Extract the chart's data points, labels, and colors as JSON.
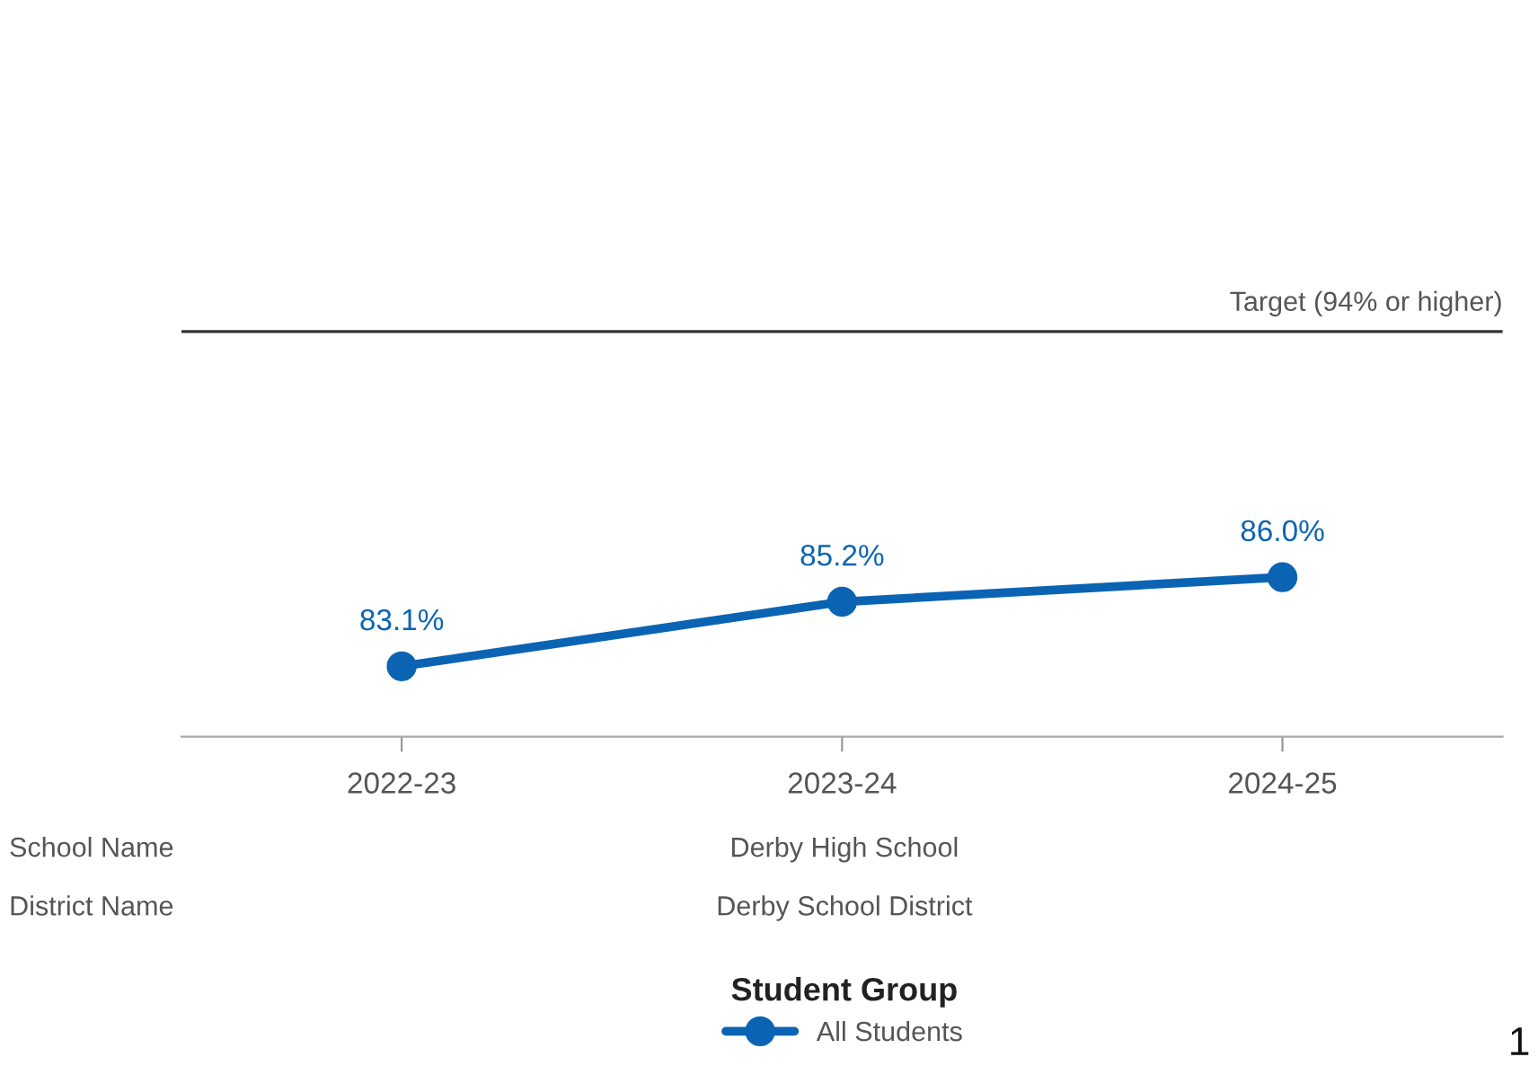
{
  "chart_data": {
    "type": "line",
    "categories": [
      "2022-23",
      "2023-24",
      "2024-25"
    ],
    "series": [
      {
        "name": "All Students",
        "color": "#0b64b3",
        "values": [
          83.1,
          85.2,
          86.0
        ],
        "value_labels": [
          "83.1%",
          "85.2%",
          "86.0%"
        ]
      }
    ],
    "tick_labels": "x",
    "marker": "circle",
    "line_style": "solid",
    "grid": false,
    "ref_lines": [
      {
        "axis": "y",
        "value": 94,
        "label": "Target (94% or higher)",
        "color": "#333333"
      }
    ],
    "legend": "bottom",
    "legend_title": "Student Group",
    "annotations": [
      "School Name",
      "Derby High School",
      "District Name",
      "Derby School District",
      "1"
    ]
  }
}
